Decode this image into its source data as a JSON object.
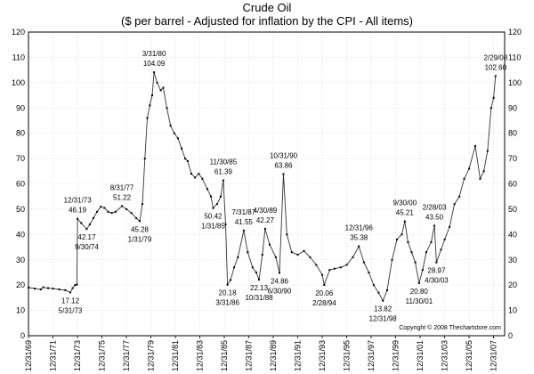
{
  "chart_data": {
    "type": "line",
    "title": "Crude Oil",
    "subtitle": "($ per barrel - Adjusted for inflation by the CPI - All items)",
    "xlabel": "",
    "ylabel": "",
    "ylim": [
      0,
      120
    ],
    "yticks": [
      0,
      10,
      20,
      30,
      40,
      50,
      60,
      70,
      80,
      90,
      100,
      110,
      120
    ],
    "xlim": [
      1969.99,
      2008.9
    ],
    "xticks": [
      {
        "label": "12/31/69",
        "x": 1969.99
      },
      {
        "label": "12/31/71",
        "x": 1971.99
      },
      {
        "label": "12/31/73",
        "x": 1973.99
      },
      {
        "label": "12/31/75",
        "x": 1975.99
      },
      {
        "label": "12/31/77",
        "x": 1977.99
      },
      {
        "label": "12/31/79",
        "x": 1979.99
      },
      {
        "label": "12/31/81",
        "x": 1981.99
      },
      {
        "label": "12/31/83",
        "x": 1983.99
      },
      {
        "label": "12/31/85",
        "x": 1985.99
      },
      {
        "label": "12/31/87",
        "x": 1987.99
      },
      {
        "label": "12/31/89",
        "x": 1989.99
      },
      {
        "label": "12/31/91",
        "x": 1991.99
      },
      {
        "label": "12/31/93",
        "x": 1993.99
      },
      {
        "label": "12/31/95",
        "x": 1995.99
      },
      {
        "label": "12/31/97",
        "x": 1997.99
      },
      {
        "label": "12/31/99",
        "x": 1999.99
      },
      {
        "label": "12/31/01",
        "x": 2001.99
      },
      {
        "label": "12/31/03",
        "x": 2003.99
      },
      {
        "label": "12/31/05",
        "x": 2005.99
      },
      {
        "label": "12/31/07",
        "x": 2007.99
      }
    ],
    "grid": true,
    "series": [
      {
        "name": "Crude Oil (inflation adjusted)",
        "points": [
          [
            1970.0,
            19.0
          ],
          [
            1970.5,
            18.6
          ],
          [
            1971.0,
            18.3
          ],
          [
            1971.2,
            19.1
          ],
          [
            1971.6,
            18.8
          ],
          [
            1972.0,
            18.6
          ],
          [
            1972.5,
            18.3
          ],
          [
            1973.0,
            18.0
          ],
          [
            1973.41,
            17.12
          ],
          [
            1973.6,
            18.8
          ],
          [
            1973.8,
            20.0
          ],
          [
            1973.95,
            20.2
          ],
          [
            1974.0,
            46.19
          ],
          [
            1974.3,
            44.5
          ],
          [
            1974.75,
            42.17
          ],
          [
            1975.0,
            44.0
          ],
          [
            1975.3,
            46.5
          ],
          [
            1975.6,
            49.0
          ],
          [
            1975.9,
            51.0
          ],
          [
            1976.2,
            50.5
          ],
          [
            1976.5,
            49.0
          ],
          [
            1976.8,
            48.5
          ],
          [
            1977.1,
            49.0
          ],
          [
            1977.63,
            51.22
          ],
          [
            1978.0,
            50.0
          ],
          [
            1978.4,
            48.5
          ],
          [
            1978.8,
            46.5
          ],
          [
            1979.08,
            45.28
          ],
          [
            1979.3,
            52.0
          ],
          [
            1979.5,
            70.0
          ],
          [
            1979.7,
            86.0
          ],
          [
            1979.9,
            91.0
          ],
          [
            1980.1,
            95.0
          ],
          [
            1980.25,
            104.09
          ],
          [
            1980.5,
            100.0
          ],
          [
            1980.8,
            97.0
          ],
          [
            1981.0,
            98.0
          ],
          [
            1981.3,
            90.0
          ],
          [
            1981.6,
            83.0
          ],
          [
            1981.9,
            80.0
          ],
          [
            1982.2,
            78.0
          ],
          [
            1982.5,
            74.0
          ],
          [
            1982.8,
            70.0
          ],
          [
            1983.0,
            69.0
          ],
          [
            1983.3,
            64.0
          ],
          [
            1983.6,
            62.5
          ],
          [
            1983.9,
            64.0
          ],
          [
            1984.2,
            62.0
          ],
          [
            1984.6,
            58.0
          ],
          [
            1984.9,
            55.0
          ],
          [
            1985.08,
            50.42
          ],
          [
            1985.4,
            52.0
          ],
          [
            1985.7,
            55.0
          ],
          [
            1985.91,
            61.39
          ],
          [
            1986.1,
            44.0
          ],
          [
            1986.25,
            20.18
          ],
          [
            1986.5,
            22.0
          ],
          [
            1986.8,
            27.0
          ],
          [
            1987.1,
            31.0
          ],
          [
            1987.58,
            41.55
          ],
          [
            1987.9,
            33.0
          ],
          [
            1988.3,
            27.0
          ],
          [
            1988.6,
            25.0
          ],
          [
            1988.83,
            22.13
          ],
          [
            1989.1,
            32.0
          ],
          [
            1989.33,
            42.27
          ],
          [
            1989.7,
            36.0
          ],
          [
            1990.2,
            31.0
          ],
          [
            1990.5,
            24.86
          ],
          [
            1990.83,
            63.86
          ],
          [
            1991.1,
            40.0
          ],
          [
            1991.5,
            33.0
          ],
          [
            1992.0,
            32.0
          ],
          [
            1992.5,
            33.5
          ],
          [
            1993.0,
            31.0
          ],
          [
            1993.5,
            28.0
          ],
          [
            1994.0,
            24.0
          ],
          [
            1994.16,
            20.06
          ],
          [
            1994.6,
            26.0
          ],
          [
            1995.0,
            26.5
          ],
          [
            1995.5,
            27.0
          ],
          [
            1996.0,
            28.0
          ],
          [
            1996.5,
            31.0
          ],
          [
            1996.99,
            35.38
          ],
          [
            1997.4,
            29.0
          ],
          [
            1997.8,
            25.0
          ],
          [
            1998.2,
            20.0
          ],
          [
            1998.6,
            17.0
          ],
          [
            1998.95,
            13.82
          ],
          [
            1999.3,
            18.0
          ],
          [
            1999.7,
            30.0
          ],
          [
            2000.1,
            38.0
          ],
          [
            2000.5,
            40.0
          ],
          [
            2000.74,
            45.21
          ],
          [
            2001.0,
            37.0
          ],
          [
            2001.3,
            33.0
          ],
          [
            2001.6,
            29.0
          ],
          [
            2001.91,
            20.8
          ],
          [
            2002.2,
            26.0
          ],
          [
            2002.5,
            33.0
          ],
          [
            2002.9,
            37.0
          ],
          [
            2003.16,
            43.5
          ],
          [
            2003.33,
            28.97
          ],
          [
            2003.7,
            34.0
          ],
          [
            2004.0,
            38.0
          ],
          [
            2004.4,
            43.0
          ],
          [
            2004.8,
            52.0
          ],
          [
            2005.2,
            55.0
          ],
          [
            2005.6,
            62.0
          ],
          [
            2006.0,
            66.0
          ],
          [
            2006.5,
            75.0
          ],
          [
            2006.9,
            62.0
          ],
          [
            2007.2,
            65.0
          ],
          [
            2007.5,
            73.0
          ],
          [
            2007.8,
            90.0
          ],
          [
            2008.0,
            94.0
          ],
          [
            2008.16,
            102.6
          ]
        ]
      }
    ],
    "annotations": [
      {
        "x": 1973.41,
        "y": 17.12,
        "label": "5/31/73",
        "value": "17.12",
        "placement": "below",
        "order": "value-first"
      },
      {
        "x": 1974.0,
        "y": 46.19,
        "label": "12/31/73",
        "value": "46.19",
        "placement": "above",
        "order": "label-first"
      },
      {
        "x": 1974.75,
        "y": 42.17,
        "label": "9/30/74",
        "value": "42.17",
        "placement": "below",
        "order": "value-first"
      },
      {
        "x": 1977.63,
        "y": 51.22,
        "label": "8/31/77",
        "value": "51.22",
        "placement": "above",
        "order": "label-first"
      },
      {
        "x": 1979.08,
        "y": 45.28,
        "label": "1/31/79",
        "value": "45.28",
        "placement": "below",
        "order": "value-first"
      },
      {
        "x": 1980.25,
        "y": 104.09,
        "label": "3/31/80",
        "value": "104.09",
        "placement": "above",
        "order": "label-first"
      },
      {
        "x": 1985.08,
        "y": 50.42,
        "label": "1/31/85",
        "value": "50.42",
        "placement": "below",
        "order": "value-first"
      },
      {
        "x": 1985.91,
        "y": 61.39,
        "label": "11/30/85",
        "value": "61.39",
        "placement": "above",
        "order": "label-first"
      },
      {
        "x": 1986.25,
        "y": 20.18,
        "label": "3/31/86",
        "value": "20.18",
        "placement": "below",
        "order": "value-first"
      },
      {
        "x": 1987.58,
        "y": 41.55,
        "label": "7/31/87",
        "value": "41.55",
        "placement": "above",
        "order": "label-first"
      },
      {
        "x": 1988.83,
        "y": 22.13,
        "label": "10/31/88",
        "value": "22.13",
        "placement": "below",
        "order": "value-first"
      },
      {
        "x": 1989.33,
        "y": 42.27,
        "label": "4/30/89",
        "value": "42.27",
        "placement": "above",
        "order": "label-first"
      },
      {
        "x": 1990.5,
        "y": 24.86,
        "label": "6/30/90",
        "value": "24.86",
        "placement": "below",
        "order": "value-first"
      },
      {
        "x": 1990.83,
        "y": 63.86,
        "label": "10/31/90",
        "value": "63.86",
        "placement": "above",
        "order": "label-first"
      },
      {
        "x": 1994.16,
        "y": 20.06,
        "label": "2/28/94",
        "value": "20.06",
        "placement": "below",
        "order": "value-first"
      },
      {
        "x": 1996.99,
        "y": 35.38,
        "label": "12/31/96",
        "value": "35.38",
        "placement": "above",
        "order": "label-first"
      },
      {
        "x": 1998.95,
        "y": 13.82,
        "label": "12/31/98",
        "value": "13.82",
        "placement": "below",
        "order": "value-first"
      },
      {
        "x": 2000.74,
        "y": 45.21,
        "label": "9/30/00",
        "value": "45.21",
        "placement": "above",
        "order": "label-first"
      },
      {
        "x": 2001.91,
        "y": 20.8,
        "label": "11/30/01",
        "value": "20.80",
        "placement": "below",
        "order": "value-first"
      },
      {
        "x": 2003.16,
        "y": 43.5,
        "label": "2/28/03",
        "value": "43.50",
        "placement": "above",
        "order": "label-first"
      },
      {
        "x": 2003.33,
        "y": 28.97,
        "label": "4/30/03",
        "value": "28.97",
        "placement": "below",
        "order": "value-first"
      },
      {
        "x": 2008.16,
        "y": 102.6,
        "label": "2/29/08",
        "value": "102.60",
        "placement": "above",
        "order": "label-first"
      }
    ],
    "copyright": "Copyright © 2008 Thechartstore.com"
  }
}
